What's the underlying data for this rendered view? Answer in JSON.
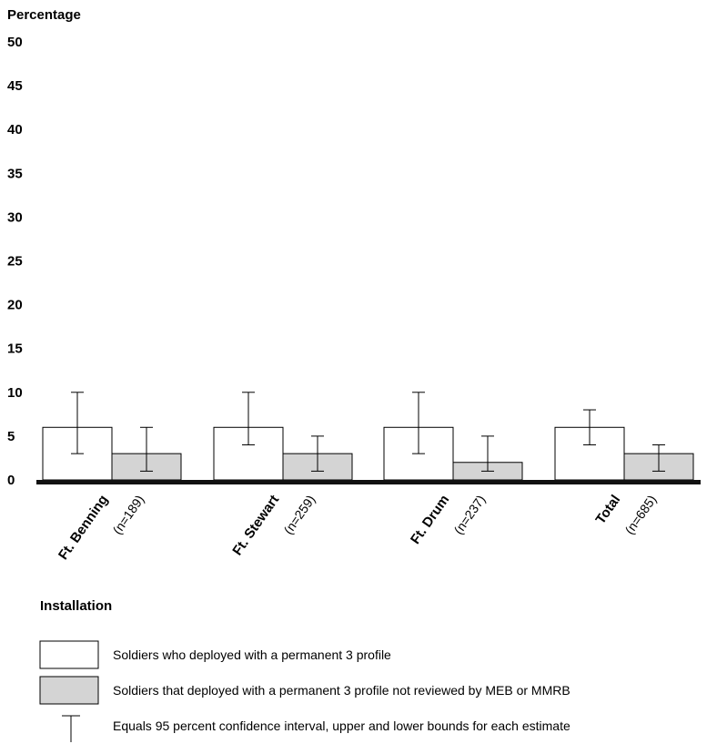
{
  "chart_data": {
    "type": "bar",
    "ylabel": "Percentage",
    "xlabel": "Installation",
    "ylim": [
      0,
      50
    ],
    "yticks": [
      0,
      5,
      10,
      15,
      20,
      25,
      30,
      35,
      40,
      45,
      50
    ],
    "categories": [
      {
        "name": "Ft. Benning",
        "n": "(n=189)"
      },
      {
        "name": "Ft. Stewart",
        "n": "(n=259)"
      },
      {
        "name": "Ft. Drum",
        "n": "(n=237)"
      },
      {
        "name": "Total",
        "n": "(n=685)"
      }
    ],
    "series": [
      {
        "name": "Soldiers who deployed with a permanent 3 profile",
        "color": "#ffffff",
        "values": [
          6,
          6,
          6,
          6
        ],
        "ci_lower": [
          3,
          4,
          3,
          4
        ],
        "ci_upper": [
          10,
          10,
          10,
          8
        ]
      },
      {
        "name": "Soldiers that deployed with a permanent 3 profile not reviewed by MEB or MMRB",
        "color": "#d4d4d4",
        "values": [
          3,
          3,
          2,
          3
        ],
        "ci_lower": [
          1,
          1,
          1,
          1
        ],
        "ci_upper": [
          6,
          5,
          5,
          4
        ]
      }
    ],
    "error_bar_legend": "Equals 95 percent confidence interval, upper and lower bounds for each estimate",
    "grid": false,
    "legend_placement": "bottom"
  }
}
